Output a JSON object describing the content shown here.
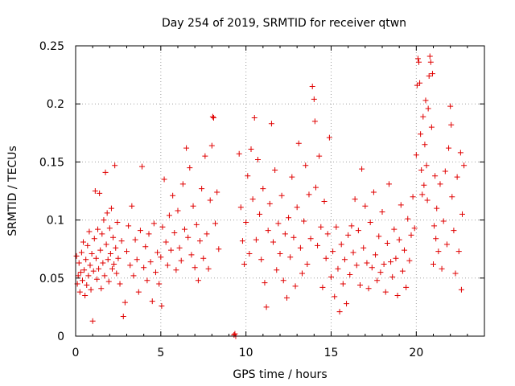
{
  "chart_data": {
    "type": "scatter",
    "title": "Day 254 of 2019, SRMTID for receiver qtwn",
    "xlabel": "GPS time / hours",
    "ylabel": "SRMTID / TECUs",
    "xlim": [
      0,
      24
    ],
    "ylim": [
      0,
      0.25
    ],
    "xticks": [
      0,
      5,
      10,
      15,
      20
    ],
    "xtick_labels": [
      "0",
      "5",
      "10",
      "15",
      "20"
    ],
    "yticks": [
      0,
      0.05,
      0.1,
      0.15,
      0.2,
      0.25
    ],
    "ytick_labels": [
      "0",
      "0.05",
      "0.1",
      "0.15",
      "0.2",
      "0.25"
    ],
    "grid": true,
    "marker": "+",
    "color": "#e00000",
    "series": [
      {
        "name": "SRMTID",
        "points": [
          [
            0.05,
            0.069
          ],
          [
            0.1,
            0.045
          ],
          [
            0.15,
            0.052
          ],
          [
            0.2,
            0.063
          ],
          [
            0.25,
            0.038
          ],
          [
            0.3,
            0.055
          ],
          [
            0.35,
            0.072
          ],
          [
            0.4,
            0.048
          ],
          [
            0.45,
            0.081
          ],
          [
            0.5,
            0.057
          ],
          [
            0.55,
            0.035
          ],
          [
            0.6,
            0.066
          ],
          [
            0.65,
            0.044
          ],
          [
            0.7,
            0.078
          ],
          [
            0.75,
            0.052
          ],
          [
            0.8,
            0.09
          ],
          [
            0.85,
            0.061
          ],
          [
            0.9,
            0.04
          ],
          [
            0.95,
            0.071
          ],
          [
            1.0,
            0.013
          ],
          [
            1.05,
            0.056
          ],
          [
            1.1,
            0.084
          ],
          [
            1.15,
            0.125
          ],
          [
            1.2,
            0.067
          ],
          [
            1.25,
            0.049
          ],
          [
            1.3,
            0.092
          ],
          [
            1.35,
            0.058
          ],
          [
            1.4,
            0.123
          ],
          [
            1.45,
            0.074
          ],
          [
            1.5,
            0.041
          ],
          [
            1.55,
            0.088
          ],
          [
            1.6,
            0.063
          ],
          [
            1.65,
            0.1
          ],
          [
            1.7,
            0.052
          ],
          [
            1.75,
            0.141
          ],
          [
            1.8,
            0.079
          ],
          [
            1.85,
            0.106
          ],
          [
            1.9,
            0.066
          ],
          [
            1.95,
            0.047
          ],
          [
            2.0,
            0.093
          ],
          [
            2.05,
            0.071
          ],
          [
            2.1,
            0.11
          ],
          [
            2.15,
            0.058
          ],
          [
            2.2,
            0.085
          ],
          [
            2.25,
            0.062
          ],
          [
            2.3,
            0.147
          ],
          [
            2.35,
            0.076
          ],
          [
            2.4,
            0.054
          ],
          [
            2.45,
            0.098
          ],
          [
            2.5,
            0.067
          ],
          [
            2.6,
            0.045
          ],
          [
            2.7,
            0.082
          ],
          [
            2.8,
            0.017
          ],
          [
            2.9,
            0.029
          ],
          [
            3.0,
            0.073
          ],
          [
            3.1,
            0.095
          ],
          [
            3.2,
            0.061
          ],
          [
            3.3,
            0.112
          ],
          [
            3.4,
            0.052
          ],
          [
            3.5,
            0.083
          ],
          [
            3.6,
            0.066
          ],
          [
            3.7,
            0.038
          ],
          [
            3.8,
            0.091
          ],
          [
            3.9,
            0.146
          ],
          [
            4.0,
            0.059
          ],
          [
            4.1,
            0.077
          ],
          [
            4.2,
            0.048
          ],
          [
            4.3,
            0.088
          ],
          [
            4.4,
            0.064
          ],
          [
            4.5,
            0.03
          ],
          [
            4.6,
            0.097
          ],
          [
            4.7,
            0.055
          ],
          [
            4.8,
            0.072
          ],
          [
            4.9,
            0.045
          ],
          [
            5.0,
            0.068
          ],
          [
            5.05,
            0.026
          ],
          [
            5.1,
            0.094
          ],
          [
            5.2,
            0.135
          ],
          [
            5.3,
            0.081
          ],
          [
            5.4,
            0.061
          ],
          [
            5.5,
            0.104
          ],
          [
            5.6,
            0.074
          ],
          [
            5.7,
            0.121
          ],
          [
            5.8,
            0.089
          ],
          [
            5.9,
            0.057
          ],
          [
            6.0,
            0.108
          ],
          [
            6.1,
            0.076
          ],
          [
            6.2,
            0.065
          ],
          [
            6.3,
            0.131
          ],
          [
            6.4,
            0.092
          ],
          [
            6.5,
            0.162
          ],
          [
            6.6,
            0.085
          ],
          [
            6.7,
            0.145
          ],
          [
            6.8,
            0.07
          ],
          [
            6.9,
            0.112
          ],
          [
            7.0,
            0.059
          ],
          [
            7.1,
            0.096
          ],
          [
            7.2,
            0.048
          ],
          [
            7.3,
            0.082
          ],
          [
            7.4,
            0.127
          ],
          [
            7.5,
            0.067
          ],
          [
            7.6,
            0.155
          ],
          [
            7.7,
            0.088
          ],
          [
            7.8,
            0.058
          ],
          [
            7.9,
            0.117
          ],
          [
            8.0,
            0.164
          ],
          [
            8.05,
            0.189
          ],
          [
            8.1,
            0.188
          ],
          [
            8.2,
            0.097
          ],
          [
            8.3,
            0.124
          ],
          [
            8.4,
            0.075
          ],
          [
            9.3,
            0.001
          ],
          [
            9.35,
            0.002
          ],
          [
            9.4,
            0.0
          ],
          [
            9.6,
            0.157
          ],
          [
            9.7,
            0.111
          ],
          [
            9.8,
            0.082
          ],
          [
            9.9,
            0.062
          ],
          [
            10.0,
            0.098
          ],
          [
            10.1,
            0.138
          ],
          [
            10.2,
            0.071
          ],
          [
            10.3,
            0.161
          ],
          [
            10.4,
            0.118
          ],
          [
            10.5,
            0.188
          ],
          [
            10.6,
            0.083
          ],
          [
            10.7,
            0.152
          ],
          [
            10.8,
            0.105
          ],
          [
            10.9,
            0.066
          ],
          [
            11.0,
            0.127
          ],
          [
            11.1,
            0.046
          ],
          [
            11.2,
            0.025
          ],
          [
            11.3,
            0.091
          ],
          [
            11.4,
            0.114
          ],
          [
            11.5,
            0.183
          ],
          [
            11.6,
            0.081
          ],
          [
            11.7,
            0.143
          ],
          [
            11.8,
            0.057
          ],
          [
            11.9,
            0.097
          ],
          [
            12.0,
            0.071
          ],
          [
            12.1,
            0.121
          ],
          [
            12.2,
            0.048
          ],
          [
            12.3,
            0.088
          ],
          [
            12.4,
            0.033
          ],
          [
            12.5,
            0.102
          ],
          [
            12.6,
            0.068
          ],
          [
            12.7,
            0.137
          ],
          [
            12.8,
            0.085
          ],
          [
            12.9,
            0.043
          ],
          [
            13.0,
            0.111
          ],
          [
            13.1,
            0.166
          ],
          [
            13.2,
            0.076
          ],
          [
            13.3,
            0.054
          ],
          [
            13.4,
            0.099
          ],
          [
            13.5,
            0.147
          ],
          [
            13.6,
            0.062
          ],
          [
            13.7,
            0.122
          ],
          [
            13.8,
            0.084
          ],
          [
            13.9,
            0.215
          ],
          [
            14.0,
            0.204
          ],
          [
            14.05,
            0.185
          ],
          [
            14.1,
            0.128
          ],
          [
            14.2,
            0.078
          ],
          [
            14.3,
            0.155
          ],
          [
            14.4,
            0.094
          ],
          [
            14.5,
            0.042
          ],
          [
            14.6,
            0.116
          ],
          [
            14.7,
            0.067
          ],
          [
            14.8,
            0.088
          ],
          [
            14.9,
            0.171
          ],
          [
            15.0,
            0.051
          ],
          [
            15.1,
            0.073
          ],
          [
            15.2,
            0.034
          ],
          [
            15.3,
            0.094
          ],
          [
            15.4,
            0.058
          ],
          [
            15.5,
            0.021
          ],
          [
            15.6,
            0.079
          ],
          [
            15.7,
            0.045
          ],
          [
            15.8,
            0.066
          ],
          [
            15.9,
            0.028
          ],
          [
            16.0,
            0.087
          ],
          [
            16.1,
            0.053
          ],
          [
            16.2,
            0.095
          ],
          [
            16.3,
            0.072
          ],
          [
            16.4,
            0.118
          ],
          [
            16.5,
            0.061
          ],
          [
            16.6,
            0.091
          ],
          [
            16.7,
            0.044
          ],
          [
            16.8,
            0.144
          ],
          [
            16.9,
            0.076
          ],
          [
            17.0,
            0.112
          ],
          [
            17.1,
            0.063
          ],
          [
            17.2,
            0.041
          ],
          [
            17.3,
            0.098
          ],
          [
            17.4,
            0.059
          ],
          [
            17.5,
            0.124
          ],
          [
            17.6,
            0.07
          ],
          [
            17.7,
            0.048
          ],
          [
            17.8,
            0.086
          ],
          [
            17.9,
            0.055
          ],
          [
            18.0,
            0.107
          ],
          [
            18.1,
            0.062
          ],
          [
            18.2,
            0.038
          ],
          [
            18.3,
            0.08
          ],
          [
            18.4,
            0.131
          ],
          [
            18.5,
            0.064
          ],
          [
            18.6,
            0.051
          ],
          [
            18.7,
            0.092
          ],
          [
            18.8,
            0.067
          ],
          [
            18.9,
            0.035
          ],
          [
            19.0,
            0.083
          ],
          [
            19.1,
            0.113
          ],
          [
            19.2,
            0.056
          ],
          [
            19.3,
            0.074
          ],
          [
            19.4,
            0.042
          ],
          [
            19.5,
            0.101
          ],
          [
            19.6,
            0.065
          ],
          [
            19.7,
            0.087
          ],
          [
            19.8,
            0.12
          ],
          [
            19.9,
            0.093
          ],
          [
            20.0,
            0.156
          ],
          [
            20.05,
            0.216
          ],
          [
            20.1,
            0.239
          ],
          [
            20.15,
            0.236
          ],
          [
            20.2,
            0.218
          ],
          [
            20.25,
            0.174
          ],
          [
            20.3,
            0.143
          ],
          [
            20.35,
            0.122
          ],
          [
            20.4,
            0.189
          ],
          [
            20.45,
            0.13
          ],
          [
            20.5,
            0.165
          ],
          [
            20.55,
            0.203
          ],
          [
            20.6,
            0.147
          ],
          [
            20.65,
            0.117
          ],
          [
            20.7,
            0.196
          ],
          [
            20.75,
            0.224
          ],
          [
            20.8,
            0.241
          ],
          [
            20.85,
            0.236
          ],
          [
            20.9,
            0.18
          ],
          [
            20.95,
            0.226
          ],
          [
            21.0,
            0.062
          ],
          [
            21.05,
            0.095
          ],
          [
            21.1,
            0.138
          ],
          [
            21.15,
            0.084
          ],
          [
            21.2,
            0.11
          ],
          [
            21.3,
            0.073
          ],
          [
            21.4,
            0.131
          ],
          [
            21.5,
            0.058
          ],
          [
            21.6,
            0.099
          ],
          [
            21.7,
            0.142
          ],
          [
            21.8,
            0.079
          ],
          [
            21.9,
            0.162
          ],
          [
            22.0,
            0.198
          ],
          [
            22.05,
            0.182
          ],
          [
            22.1,
            0.12
          ],
          [
            22.2,
            0.091
          ],
          [
            22.3,
            0.054
          ],
          [
            22.4,
            0.137
          ],
          [
            22.5,
            0.073
          ],
          [
            22.6,
            0.158
          ],
          [
            22.65,
            0.04
          ],
          [
            22.7,
            0.105
          ],
          [
            22.8,
            0.147
          ]
        ]
      }
    ]
  }
}
